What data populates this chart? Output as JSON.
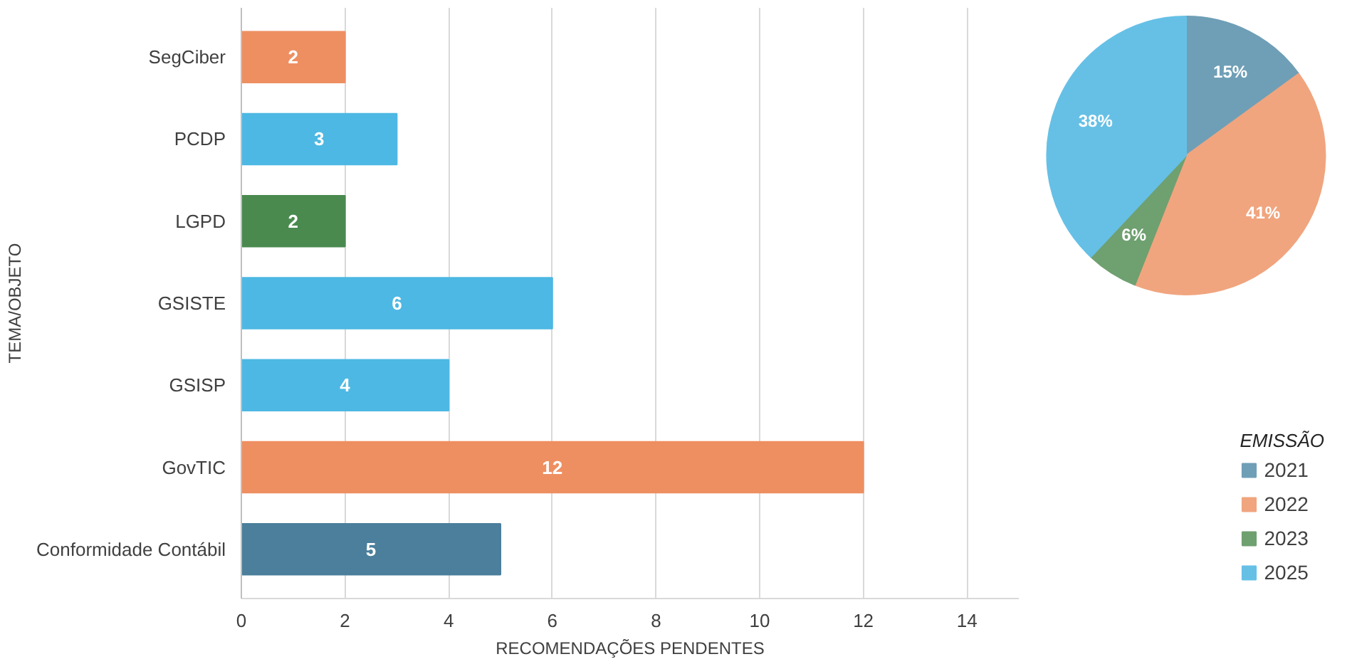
{
  "chart_data": [
    {
      "type": "bar",
      "orientation": "horizontal",
      "xlabel": "RECOMENDAÇÕES PENDENTES",
      "ylabel": "TEMA/OBJETO",
      "categories": [
        "SegCiber",
        "PCDP",
        "LGPD",
        "GSISTE",
        "GSISP",
        "GovTIC",
        "Conformidade Contábil"
      ],
      "values": [
        2,
        3,
        2,
        6,
        4,
        12,
        5
      ],
      "colors": [
        "#ee8f62",
        "#4db8e3",
        "#4a8a4f",
        "#4db8e3",
        "#4db8e3",
        "#ee8f62",
        "#4b7f9b"
      ],
      "xlim": [
        0,
        15
      ],
      "xticks": [
        0,
        2,
        4,
        6,
        8,
        10,
        12,
        14
      ],
      "grid": "x",
      "data_labels": true
    },
    {
      "type": "pie",
      "categories": [
        "2021",
        "2022",
        "2023",
        "2025"
      ],
      "values": [
        15,
        41,
        6,
        38
      ],
      "colors": [
        "#6f9fb6",
        "#f0a57f",
        "#6fa070",
        "#66c0e6"
      ],
      "value_labels": [
        "15%",
        "41%",
        "6%",
        "38%"
      ],
      "legend": "bottom right",
      "legend_title": "EMISSÃO"
    }
  ]
}
